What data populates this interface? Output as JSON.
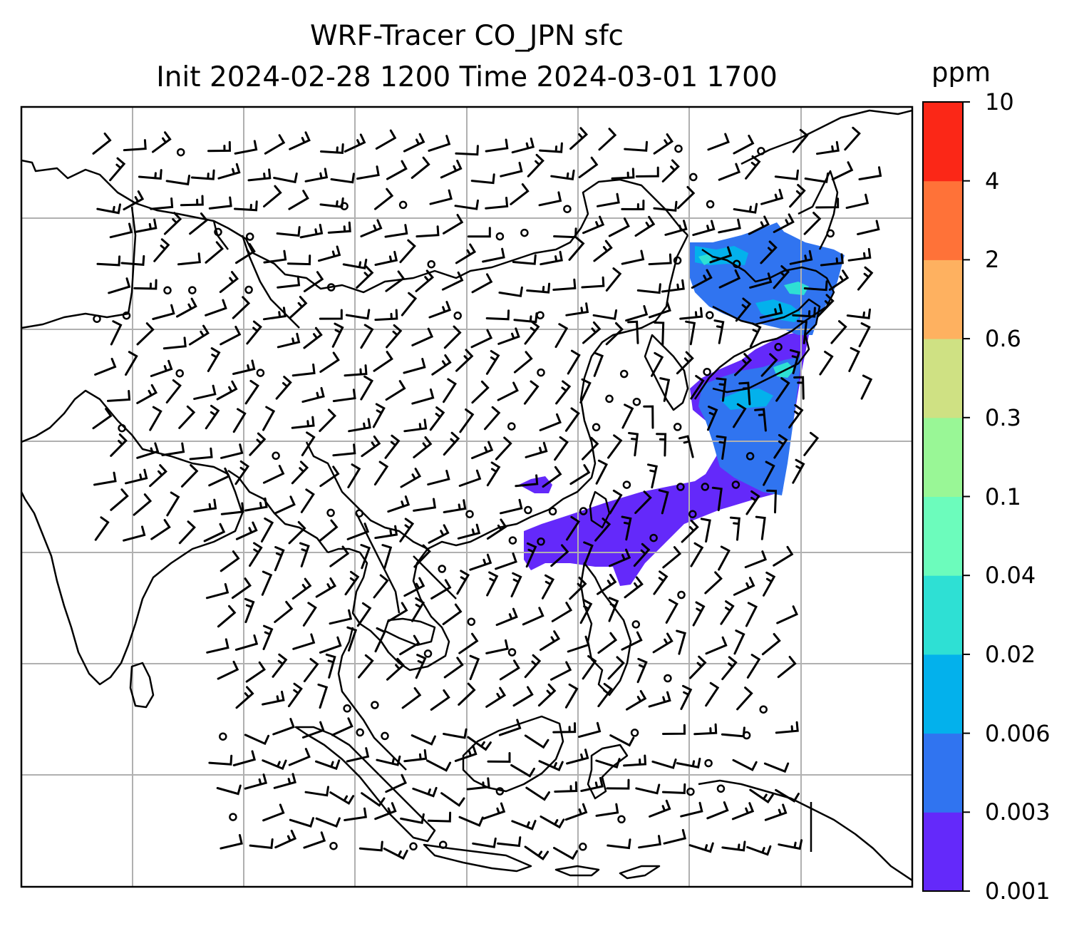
{
  "title": {
    "line1": "WRF-Tracer CO_JPN sfc",
    "line2": "Init 2024-02-28 1200 Time 2024-03-01 1700"
  },
  "colorbar": {
    "unit": "ppm",
    "ticks": [
      "0.001",
      "0.003",
      "0.006",
      "0.02",
      "0.04",
      "0.1",
      "0.3",
      "0.6",
      "2",
      "4",
      "10"
    ],
    "colors": [
      "#6429fa",
      "#3074f0",
      "#03b1ec",
      "#2ee0d4",
      "#6cfcbc",
      "#99f796",
      "#cfe183",
      "#feb160",
      "#ff7238",
      "#fb2717"
    ]
  },
  "map": {
    "frame_color": "#000000",
    "gridline_color": "#b0b0b0",
    "coastline_color": "#000000",
    "wind_barb_color": "#000000",
    "tracer_plume_colors": [
      "#6429fa",
      "#3074f0",
      "#03b1ec",
      "#2ee0d4"
    ]
  }
}
